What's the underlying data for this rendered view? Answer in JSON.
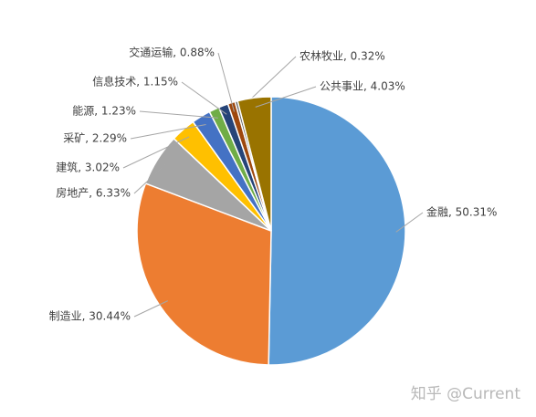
{
  "chart_data": {
    "type": "pie",
    "values": [
      50.31,
      30.44,
      6.33,
      3.02,
      2.29,
      1.23,
      1.15,
      0.88,
      0.32,
      4.03
    ],
    "value_labels": [
      "金融, 50.31%",
      "制造业, 30.44%",
      "房地产, 6.33%",
      "建筑, 3.02%",
      "采矿, 2.29%",
      "能源, 1.23%",
      "信息技术, 1.15%",
      "交通运输, 0.88%",
      "农林牧业, 0.32%",
      "公共事业, 4.03%"
    ],
    "colors": [
      "#5b9bd5",
      "#ed7d31",
      "#a5a5a5",
      "#ffc000",
      "#4472c4",
      "#70ad47",
      "#264478",
      "#9e480e",
      "#636363",
      "#997300"
    ]
  },
  "watermark": "知乎 @Current"
}
